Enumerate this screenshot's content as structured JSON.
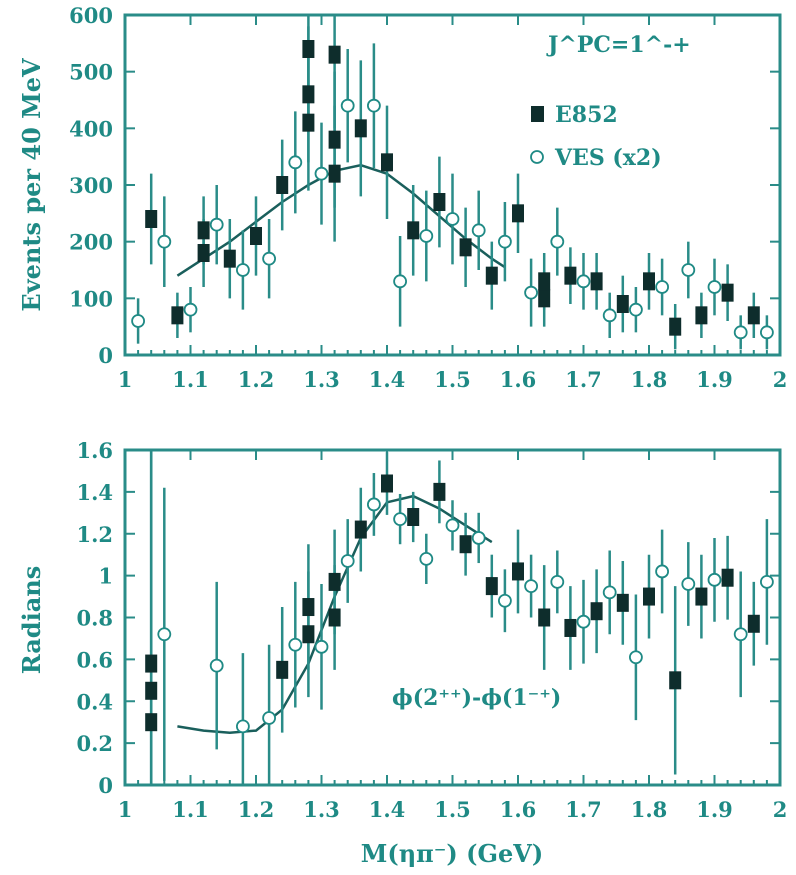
{
  "figure": {
    "xlabel": "M(ηπ⁻) (GeV)"
  },
  "chart_data": [
    {
      "type": "scatter",
      "ylabel": "Events per 40 MeV",
      "annotation": "J^PC=1^-+",
      "xlim": [
        1.0,
        2.0
      ],
      "ylim": [
        0,
        600
      ],
      "x_ticks": [
        "1",
        "1.1",
        "1.2",
        "1.3",
        "1.4",
        "1.5",
        "1.6",
        "1.7",
        "1.8",
        "1.9",
        "2"
      ],
      "y_ticks": [
        "0",
        "100",
        "200",
        "300",
        "400",
        "500",
        "600"
      ],
      "legend": [
        "E852",
        "VES (x2)"
      ],
      "series": [
        {
          "name": "E852",
          "marker": "filled-square",
          "points": [
            {
              "x": 1.04,
              "y": 240,
              "err": 80
            },
            {
              "x": 1.08,
              "y": 70,
              "err": 40
            },
            {
              "x": 1.12,
              "y": 180,
              "err": 60
            },
            {
              "x": 1.12,
              "y": 220,
              "err": 60
            },
            {
              "x": 1.16,
              "y": 170,
              "err": 70
            },
            {
              "x": 1.2,
              "y": 210,
              "err": 70
            },
            {
              "x": 1.24,
              "y": 300,
              "err": 80
            },
            {
              "x": 1.28,
              "y": 410,
              "err": 120
            },
            {
              "x": 1.28,
              "y": 460,
              "err": 120
            },
            {
              "x": 1.28,
              "y": 540,
              "err": 130
            },
            {
              "x": 1.32,
              "y": 320,
              "err": 120
            },
            {
              "x": 1.32,
              "y": 380,
              "err": 120
            },
            {
              "x": 1.32,
              "y": 530,
              "err": 130
            },
            {
              "x": 1.36,
              "y": 400,
              "err": 120
            },
            {
              "x": 1.4,
              "y": 340,
              "err": 100
            },
            {
              "x": 1.44,
              "y": 220,
              "err": 80
            },
            {
              "x": 1.48,
              "y": 270,
              "err": 80
            },
            {
              "x": 1.52,
              "y": 190,
              "err": 70
            },
            {
              "x": 1.56,
              "y": 140,
              "err": 60
            },
            {
              "x": 1.6,
              "y": 250,
              "err": 70
            },
            {
              "x": 1.64,
              "y": 100,
              "err": 50
            },
            {
              "x": 1.64,
              "y": 130,
              "err": 50
            },
            {
              "x": 1.68,
              "y": 140,
              "err": 50
            },
            {
              "x": 1.72,
              "y": 130,
              "err": 50
            },
            {
              "x": 1.76,
              "y": 90,
              "err": 50
            },
            {
              "x": 1.8,
              "y": 130,
              "err": 50
            },
            {
              "x": 1.84,
              "y": 50,
              "err": 40
            },
            {
              "x": 1.88,
              "y": 70,
              "err": 40
            },
            {
              "x": 1.92,
              "y": 110,
              "err": 50
            },
            {
              "x": 1.96,
              "y": 70,
              "err": 40
            }
          ]
        },
        {
          "name": "VES (x2)",
          "marker": "open-circle",
          "points": [
            {
              "x": 1.02,
              "y": 60,
              "err": 40
            },
            {
              "x": 1.06,
              "y": 200,
              "err": 80
            },
            {
              "x": 1.1,
              "y": 80,
              "err": 40
            },
            {
              "x": 1.14,
              "y": 230,
              "err": 70
            },
            {
              "x": 1.18,
              "y": 150,
              "err": 70
            },
            {
              "x": 1.22,
              "y": 170,
              "err": 70
            },
            {
              "x": 1.26,
              "y": 340,
              "err": 90
            },
            {
              "x": 1.3,
              "y": 320,
              "err": 90
            },
            {
              "x": 1.34,
              "y": 440,
              "err": 100
            },
            {
              "x": 1.38,
              "y": 440,
              "err": 110
            },
            {
              "x": 1.42,
              "y": 130,
              "err": 80
            },
            {
              "x": 1.46,
              "y": 210,
              "err": 80
            },
            {
              "x": 1.5,
              "y": 240,
              "err": 80
            },
            {
              "x": 1.54,
              "y": 220,
              "err": 70
            },
            {
              "x": 1.58,
              "y": 200,
              "err": 70
            },
            {
              "x": 1.62,
              "y": 110,
              "err": 60
            },
            {
              "x": 1.66,
              "y": 200,
              "err": 60
            },
            {
              "x": 1.7,
              "y": 130,
              "err": 50
            },
            {
              "x": 1.74,
              "y": 70,
              "err": 40
            },
            {
              "x": 1.78,
              "y": 80,
              "err": 40
            },
            {
              "x": 1.82,
              "y": 120,
              "err": 50
            },
            {
              "x": 1.86,
              "y": 150,
              "err": 50
            },
            {
              "x": 1.9,
              "y": 120,
              "err": 50
            },
            {
              "x": 1.94,
              "y": 40,
              "err": 30
            },
            {
              "x": 1.98,
              "y": 40,
              "err": 30
            }
          ]
        },
        {
          "type": "line",
          "role": "fit",
          "points": [
            {
              "x": 1.08,
              "y": 140
            },
            {
              "x": 1.12,
              "y": 170
            },
            {
              "x": 1.16,
              "y": 200
            },
            {
              "x": 1.2,
              "y": 235
            },
            {
              "x": 1.24,
              "y": 270
            },
            {
              "x": 1.28,
              "y": 300
            },
            {
              "x": 1.32,
              "y": 325
            },
            {
              "x": 1.36,
              "y": 335
            },
            {
              "x": 1.4,
              "y": 320
            },
            {
              "x": 1.44,
              "y": 285
            },
            {
              "x": 1.48,
              "y": 245
            },
            {
              "x": 1.52,
              "y": 205
            },
            {
              "x": 1.56,
              "y": 170
            },
            {
              "x": 1.58,
              "y": 155
            }
          ]
        }
      ]
    },
    {
      "type": "scatter",
      "ylabel": "Radians",
      "annotation": "ϕ(2⁺⁺)-ϕ(1⁻⁺)",
      "xlim": [
        1.0,
        2.0
      ],
      "ylim": [
        0,
        1.6
      ],
      "x_ticks": [
        "1",
        "1.1",
        "1.2",
        "1.3",
        "1.4",
        "1.5",
        "1.6",
        "1.7",
        "1.8",
        "1.9",
        "2"
      ],
      "y_ticks": [
        "0",
        "0.2",
        "0.4",
        "0.6",
        "0.8",
        "1",
        "1.2",
        "1.4",
        "1.6"
      ],
      "series": [
        {
          "name": "E852",
          "marker": "filled-square",
          "points": [
            {
              "x": 1.04,
              "y": 0.3,
              "err": 1.3
            },
            {
              "x": 1.04,
              "y": 0.45,
              "err": 1.3
            },
            {
              "x": 1.04,
              "y": 0.58,
              "err": 1.3
            },
            {
              "x": 1.24,
              "y": 0.55,
              "err": 0.3
            },
            {
              "x": 1.28,
              "y": 0.72,
              "err": 0.3
            },
            {
              "x": 1.28,
              "y": 0.85,
              "err": 0.3
            },
            {
              "x": 1.32,
              "y": 0.8,
              "err": 0.25
            },
            {
              "x": 1.32,
              "y": 0.97,
              "err": 0.25
            },
            {
              "x": 1.36,
              "y": 1.22,
              "err": 0.2
            },
            {
              "x": 1.4,
              "y": 1.44,
              "err": 0.15
            },
            {
              "x": 1.44,
              "y": 1.28,
              "err": 0.12
            },
            {
              "x": 1.48,
              "y": 1.4,
              "err": 0.15
            },
            {
              "x": 1.52,
              "y": 1.15,
              "err": 0.15
            },
            {
              "x": 1.56,
              "y": 0.95,
              "err": 0.15
            },
            {
              "x": 1.6,
              "y": 1.02,
              "err": 0.2
            },
            {
              "x": 1.64,
              "y": 0.8,
              "err": 0.25
            },
            {
              "x": 1.68,
              "y": 0.75,
              "err": 0.2
            },
            {
              "x": 1.72,
              "y": 0.83,
              "err": 0.2
            },
            {
              "x": 1.76,
              "y": 0.87,
              "err": 0.2
            },
            {
              "x": 1.8,
              "y": 0.9,
              "err": 0.2
            },
            {
              "x": 1.84,
              "y": 0.5,
              "err": 0.45
            },
            {
              "x": 1.88,
              "y": 0.9,
              "err": 0.2
            },
            {
              "x": 1.92,
              "y": 0.99,
              "err": 0.2
            },
            {
              "x": 1.96,
              "y": 0.77,
              "err": 0.2
            }
          ]
        },
        {
          "name": "VES",
          "marker": "open-circle",
          "points": [
            {
              "x": 1.06,
              "y": 0.72,
              "err": 0.7
            },
            {
              "x": 1.14,
              "y": 0.57,
              "err": 0.4
            },
            {
              "x": 1.18,
              "y": 0.28,
              "err": 0.35
            },
            {
              "x": 1.22,
              "y": 0.32,
              "err": 0.35
            },
            {
              "x": 1.26,
              "y": 0.67,
              "err": 0.3
            },
            {
              "x": 1.3,
              "y": 0.66,
              "err": 0.3
            },
            {
              "x": 1.34,
              "y": 1.07,
              "err": 0.2
            },
            {
              "x": 1.38,
              "y": 1.34,
              "err": 0.15
            },
            {
              "x": 1.42,
              "y": 1.27,
              "err": 0.12
            },
            {
              "x": 1.46,
              "y": 1.08,
              "err": 0.12
            },
            {
              "x": 1.5,
              "y": 1.24,
              "err": 0.12
            },
            {
              "x": 1.54,
              "y": 1.18,
              "err": 0.12
            },
            {
              "x": 1.58,
              "y": 0.88,
              "err": 0.15
            },
            {
              "x": 1.62,
              "y": 0.95,
              "err": 0.15
            },
            {
              "x": 1.66,
              "y": 0.97,
              "err": 0.15
            },
            {
              "x": 1.7,
              "y": 0.78,
              "err": 0.2
            },
            {
              "x": 1.74,
              "y": 0.92,
              "err": 0.2
            },
            {
              "x": 1.78,
              "y": 0.61,
              "err": 0.3
            },
            {
              "x": 1.82,
              "y": 1.02,
              "err": 0.2
            },
            {
              "x": 1.86,
              "y": 0.96,
              "err": 0.2
            },
            {
              "x": 1.9,
              "y": 0.98,
              "err": 0.2
            },
            {
              "x": 1.94,
              "y": 0.72,
              "err": 0.3
            },
            {
              "x": 1.98,
              "y": 0.97,
              "err": 0.3
            }
          ]
        },
        {
          "type": "line",
          "role": "fit",
          "points": [
            {
              "x": 1.08,
              "y": 0.28
            },
            {
              "x": 1.12,
              "y": 0.26
            },
            {
              "x": 1.16,
              "y": 0.25
            },
            {
              "x": 1.2,
              "y": 0.26
            },
            {
              "x": 1.24,
              "y": 0.36
            },
            {
              "x": 1.28,
              "y": 0.58
            },
            {
              "x": 1.32,
              "y": 0.9
            },
            {
              "x": 1.36,
              "y": 1.18
            },
            {
              "x": 1.4,
              "y": 1.35
            },
            {
              "x": 1.44,
              "y": 1.38
            },
            {
              "x": 1.48,
              "y": 1.32
            },
            {
              "x": 1.52,
              "y": 1.24
            },
            {
              "x": 1.56,
              "y": 1.16
            }
          ]
        }
      ]
    }
  ]
}
